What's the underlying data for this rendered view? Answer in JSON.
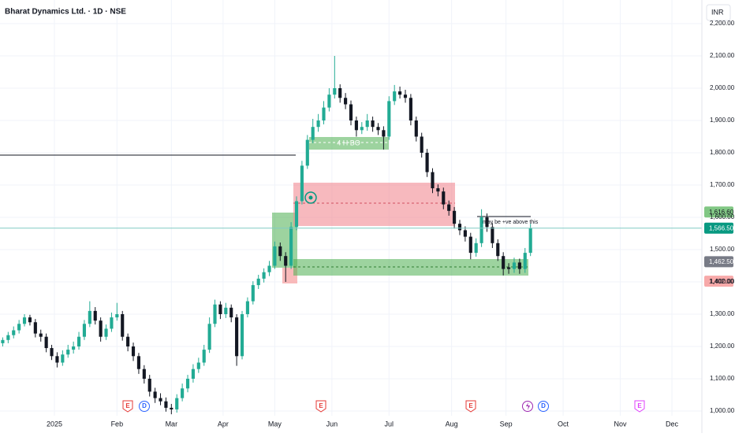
{
  "chart_data": {
    "type": "candlestick",
    "title": "Bharat Dynamics Ltd. · 1D · NSE",
    "currency": "INR",
    "up_color": "#22ab94",
    "down_color": "#131722",
    "xlim": [
      0,
      129
    ],
    "ylim": [
      1000,
      2200
    ],
    "yticks": [
      {
        "value": 1000,
        "label": "1,000.00"
      },
      {
        "value": 1100,
        "label": "1,100.00"
      },
      {
        "value": 1200,
        "label": "1,200.00"
      },
      {
        "value": 1300,
        "label": "1,300.00"
      },
      {
        "value": 1400,
        "label": "1,400.00"
      },
      {
        "value": 1500,
        "label": "1,500.00"
      },
      {
        "value": 1600,
        "label": "1,600.00"
      },
      {
        "value": 1700,
        "label": "1,700.00"
      },
      {
        "value": 1800,
        "label": "1,800.00"
      },
      {
        "value": 1900,
        "label": "1,900.00"
      },
      {
        "value": 2000,
        "label": "2,000.00"
      },
      {
        "value": 2100,
        "label": "2,100.00"
      },
      {
        "value": 2200,
        "label": "2,200.00"
      }
    ],
    "xticks": [
      {
        "value": 10,
        "label": "2025"
      },
      {
        "value": 21.5,
        "label": "Feb"
      },
      {
        "value": 31.5,
        "label": "Mar"
      },
      {
        "value": 41,
        "label": "Apr"
      },
      {
        "value": 50.5,
        "label": "May"
      },
      {
        "value": 61,
        "label": "Jun"
      },
      {
        "value": 71.5,
        "label": "Jul"
      },
      {
        "value": 83,
        "label": "Aug"
      },
      {
        "value": 93,
        "label": "Sep"
      },
      {
        "value": 103.5,
        "label": "Oct"
      },
      {
        "value": 114,
        "label": "Nov"
      },
      {
        "value": 123.5,
        "label": "Dec"
      }
    ],
    "grid": true,
    "ohlc": [
      [
        1210,
        1228,
        1200,
        1220
      ],
      [
        1220,
        1245,
        1210,
        1235
      ],
      [
        1235,
        1262,
        1225,
        1250
      ],
      [
        1250,
        1282,
        1240,
        1270
      ],
      [
        1270,
        1300,
        1262,
        1290
      ],
      [
        1290,
        1298,
        1265,
        1275
      ],
      [
        1275,
        1285,
        1228,
        1240
      ],
      [
        1240,
        1252,
        1215,
        1230
      ],
      [
        1230,
        1240,
        1182,
        1195
      ],
      [
        1195,
        1205,
        1158,
        1170
      ],
      [
        1170,
        1182,
        1135,
        1150
      ],
      [
        1150,
        1188,
        1140,
        1175
      ],
      [
        1175,
        1205,
        1165,
        1190
      ],
      [
        1190,
        1215,
        1178,
        1200
      ],
      [
        1200,
        1245,
        1190,
        1230
      ],
      [
        1230,
        1282,
        1220,
        1270
      ],
      [
        1270,
        1340,
        1260,
        1310
      ],
      [
        1310,
        1322,
        1268,
        1280
      ],
      [
        1280,
        1290,
        1215,
        1230
      ],
      [
        1230,
        1268,
        1220,
        1255
      ],
      [
        1255,
        1305,
        1245,
        1290
      ],
      [
        1290,
        1335,
        1280,
        1300
      ],
      [
        1300,
        1310,
        1218,
        1230
      ],
      [
        1230,
        1240,
        1185,
        1200
      ],
      [
        1200,
        1212,
        1155,
        1170
      ],
      [
        1170,
        1180,
        1115,
        1130
      ],
      [
        1130,
        1142,
        1085,
        1100
      ],
      [
        1100,
        1112,
        1045,
        1060
      ],
      [
        1060,
        1072,
        1025,
        1040
      ],
      [
        1040,
        1055,
        1018,
        1030
      ],
      [
        1030,
        1042,
        998,
        1010
      ],
      [
        1010,
        1022,
        990,
        1005
      ],
      [
        1005,
        1052,
        995,
        1040
      ],
      [
        1040,
        1085,
        1030,
        1070
      ],
      [
        1070,
        1112,
        1058,
        1100
      ],
      [
        1100,
        1145,
        1088,
        1130
      ],
      [
        1130,
        1165,
        1118,
        1150
      ],
      [
        1150,
        1205,
        1140,
        1190
      ],
      [
        1190,
        1290,
        1180,
        1270
      ],
      [
        1270,
        1345,
        1260,
        1330
      ],
      [
        1330,
        1340,
        1285,
        1300
      ],
      [
        1300,
        1335,
        1288,
        1320
      ],
      [
        1320,
        1330,
        1275,
        1290
      ],
      [
        1290,
        1300,
        1140,
        1170
      ],
      [
        1170,
        1310,
        1160,
        1300
      ],
      [
        1300,
        1352,
        1290,
        1340
      ],
      [
        1340,
        1402,
        1330,
        1390
      ],
      [
        1390,
        1422,
        1378,
        1410
      ],
      [
        1410,
        1442,
        1398,
        1430
      ],
      [
        1430,
        1465,
        1418,
        1450
      ],
      [
        1450,
        1525,
        1440,
        1510
      ],
      [
        1510,
        1522,
        1465,
        1480
      ],
      [
        1480,
        1492,
        1400,
        1450
      ],
      [
        1450,
        1585,
        1440,
        1570
      ],
      [
        1570,
        1665,
        1560,
        1650
      ],
      [
        1650,
        1775,
        1640,
        1760
      ],
      [
        1760,
        1855,
        1750,
        1840
      ],
      [
        1840,
        1905,
        1830,
        1880
      ],
      [
        1880,
        1920,
        1865,
        1900
      ],
      [
        1900,
        1960,
        1888,
        1940
      ],
      [
        1940,
        2000,
        1928,
        1980
      ],
      [
        1980,
        2100,
        1968,
        2000
      ],
      [
        2000,
        2012,
        1955,
        1970
      ],
      [
        1970,
        1985,
        1935,
        1950
      ],
      [
        1950,
        1962,
        1885,
        1900
      ],
      [
        1900,
        1912,
        1850,
        1870
      ],
      [
        1870,
        1895,
        1858,
        1880
      ],
      [
        1880,
        1920,
        1868,
        1900
      ],
      [
        1900,
        1912,
        1865,
        1880
      ],
      [
        1880,
        1892,
        1855,
        1870
      ],
      [
        1870,
        1882,
        1810,
        1850
      ],
      [
        1850,
        1975,
        1840,
        1960
      ],
      [
        1960,
        2010,
        1948,
        1990
      ],
      [
        1990,
        2005,
        1968,
        1980
      ],
      [
        1980,
        1995,
        1955,
        1970
      ],
      [
        1970,
        1982,
        1885,
        1900
      ],
      [
        1900,
        1912,
        1835,
        1850
      ],
      [
        1850,
        1862,
        1785,
        1800
      ],
      [
        1800,
        1812,
        1725,
        1740
      ],
      [
        1740,
        1752,
        1675,
        1690
      ],
      [
        1690,
        1702,
        1665,
        1680
      ],
      [
        1680,
        1692,
        1625,
        1640
      ],
      [
        1640,
        1652,
        1605,
        1620
      ],
      [
        1620,
        1632,
        1565,
        1580
      ],
      [
        1580,
        1592,
        1545,
        1560
      ],
      [
        1560,
        1572,
        1525,
        1540
      ],
      [
        1540,
        1552,
        1470,
        1490
      ],
      [
        1490,
        1535,
        1478,
        1520
      ],
      [
        1520,
        1625,
        1508,
        1600
      ],
      [
        1600,
        1612,
        1555,
        1570
      ],
      [
        1570,
        1582,
        1505,
        1520
      ],
      [
        1520,
        1532,
        1465,
        1480
      ],
      [
        1480,
        1492,
        1420,
        1440
      ],
      [
        1445,
        1458,
        1425,
        1440
      ],
      [
        1440,
        1475,
        1428,
        1460
      ],
      [
        1460,
        1472,
        1425,
        1440
      ],
      [
        1440,
        1505,
        1428,
        1490
      ],
      [
        1490,
        1580,
        1480,
        1566.5
      ]
    ],
    "price_tags": [
      {
        "value": 1616.6,
        "label": "1,616.60",
        "color": "#81c784",
        "text_color": "#131722"
      },
      {
        "value": 1566.5,
        "label": "1,566.50",
        "color": "#089981",
        "text_color": "#ffffff"
      },
      {
        "value": 1462.5,
        "label": "1,462.50",
        "color": "#787b86",
        "text_color": "#ffffff"
      },
      {
        "value": 1402,
        "label": "1,402.00",
        "color": "#f7a9a9",
        "text_color": "#131722"
      }
    ],
    "annotations": [
      "4 H BO",
      "may be +ve above this"
    ],
    "events": [
      "E",
      "D",
      "E",
      "E",
      "D",
      "E"
    ]
  }
}
